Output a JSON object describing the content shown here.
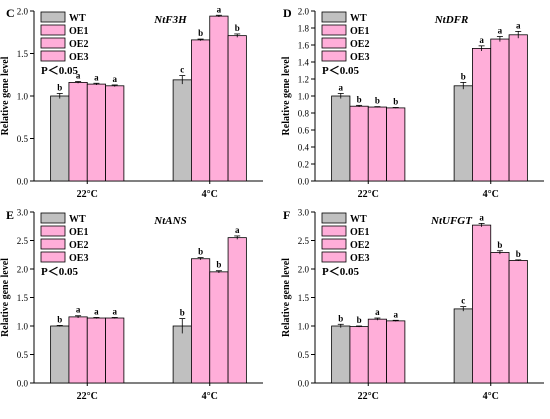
{
  "figure": {
    "colors": {
      "WT": "#c0c0c0",
      "OE": "#ffaed9",
      "stroke": "#000000"
    }
  },
  "chart_data": [
    {
      "type": "bar",
      "panel_letter": "C",
      "title": "NtF3H",
      "ylabel": "Relative gene level",
      "categories": [
        "22°C",
        "4°C"
      ],
      "ylim": [
        0,
        2.0
      ],
      "yticks": [
        0.0,
        0.5,
        1.0,
        1.5,
        2.0
      ],
      "tick_labels": [
        "0.0",
        "0.5",
        "1.0",
        "1.5",
        "2.0"
      ],
      "annotation": "P＜0.05",
      "legend": [
        "WT",
        "OE1",
        "OE2",
        "OE3"
      ],
      "series": [
        {
          "name": "WT",
          "values": [
            1.0,
            1.19
          ],
          "errors": [
            0.03,
            0.05
          ],
          "letters": [
            "b",
            "c"
          ]
        },
        {
          "name": "OE1",
          "values": [
            1.16,
            1.66
          ],
          "errors": [
            0.01,
            0.01
          ],
          "letters": [
            "a",
            "b"
          ]
        },
        {
          "name": "OE2",
          "values": [
            1.14,
            1.94
          ],
          "errors": [
            0.01,
            0.01
          ],
          "letters": [
            "a",
            "a"
          ]
        },
        {
          "name": "OE3",
          "values": [
            1.12,
            1.71
          ],
          "errors": [
            0.01,
            0.02
          ],
          "letters": [
            "a",
            "b"
          ]
        }
      ]
    },
    {
      "type": "bar",
      "panel_letter": "D",
      "title": "NtDFR",
      "ylabel": "Relative gene level",
      "categories": [
        "22°C",
        "4°C"
      ],
      "ylim": [
        0,
        2.0
      ],
      "yticks": [
        0.0,
        0.2,
        0.4,
        0.6,
        0.8,
        1.0,
        1.2,
        1.4,
        1.6,
        1.8,
        2.0
      ],
      "tick_labels": [
        "0.0",
        "0.2",
        "0.4",
        "0.6",
        "0.8",
        "1.0",
        "1.2",
        "1.4",
        "1.6",
        "1.8",
        "2.0"
      ],
      "annotation": "P＜0.05",
      "legend": [
        "WT",
        "OE1",
        "OE2",
        "OE3"
      ],
      "series": [
        {
          "name": "WT",
          "values": [
            1.0,
            1.12
          ],
          "errors": [
            0.03,
            0.04
          ],
          "letters": [
            "a",
            "b"
          ]
        },
        {
          "name": "OE1",
          "values": [
            0.88,
            1.56
          ],
          "errors": [
            0.01,
            0.03
          ],
          "letters": [
            "b",
            "a"
          ]
        },
        {
          "name": "OE2",
          "values": [
            0.87,
            1.67
          ],
          "errors": [
            0.005,
            0.03
          ],
          "letters": [
            "b",
            "a"
          ]
        },
        {
          "name": "OE3",
          "values": [
            0.86,
            1.72
          ],
          "errors": [
            0.005,
            0.04
          ],
          "letters": [
            "b",
            "a"
          ]
        }
      ]
    },
    {
      "type": "bar",
      "panel_letter": "E",
      "title": "NtANS",
      "ylabel": "Relative gene level",
      "categories": [
        "22°C",
        "4°C"
      ],
      "ylim": [
        0,
        3.0
      ],
      "yticks": [
        0.0,
        0.5,
        1.0,
        1.5,
        2.0,
        2.5,
        3.0
      ],
      "tick_labels": [
        "0.0",
        "0.5",
        "1.0",
        "1.5",
        "2.0",
        "2.5",
        "3.0"
      ],
      "annotation": "P＜0.05",
      "legend": [
        "WT",
        "OE1",
        "OE2",
        "OE3"
      ],
      "series": [
        {
          "name": "WT",
          "values": [
            1.0,
            1.0
          ],
          "errors": [
            0.01,
            0.13
          ],
          "letters": [
            "b",
            "b"
          ]
        },
        {
          "name": "OE1",
          "values": [
            1.16,
            2.18
          ],
          "errors": [
            0.02,
            0.02
          ],
          "letters": [
            "a",
            "b"
          ]
        },
        {
          "name": "OE2",
          "values": [
            1.14,
            1.95
          ],
          "errors": [
            0.01,
            0.02
          ],
          "letters": [
            "a",
            "b"
          ]
        },
        {
          "name": "OE3",
          "values": [
            1.14,
            2.55
          ],
          "errors": [
            0.01,
            0.03
          ],
          "letters": [
            "a",
            "a"
          ]
        }
      ]
    },
    {
      "type": "bar",
      "panel_letter": "F",
      "title": "NtUFGT",
      "ylabel": "Relative gene level",
      "categories": [
        "22°C",
        "4°C"
      ],
      "ylim": [
        0,
        3.0
      ],
      "yticks": [
        0.0,
        0.5,
        1.0,
        1.5,
        2.0,
        2.5,
        3.0
      ],
      "tick_labels": [
        "0.0",
        "0.5",
        "1.0",
        "1.5",
        "2.0",
        "2.5",
        "3.0"
      ],
      "annotation": "P＜0.05",
      "legend": [
        "WT",
        "OE1",
        "OE2",
        "OE3"
      ],
      "series": [
        {
          "name": "WT",
          "values": [
            1.0,
            1.3
          ],
          "errors": [
            0.03,
            0.04
          ],
          "letters": [
            "b",
            "c"
          ]
        },
        {
          "name": "OE1",
          "values": [
            0.99,
            2.77
          ],
          "errors": [
            0.01,
            0.03
          ],
          "letters": [
            "b",
            "a"
          ]
        },
        {
          "name": "OE2",
          "values": [
            1.12,
            2.29
          ],
          "errors": [
            0.02,
            0.03
          ],
          "letters": [
            "a",
            "b"
          ]
        },
        {
          "name": "OE3",
          "values": [
            1.09,
            2.15
          ],
          "errors": [
            0.01,
            0.01
          ],
          "letters": [
            "a",
            "b"
          ]
        }
      ]
    }
  ]
}
